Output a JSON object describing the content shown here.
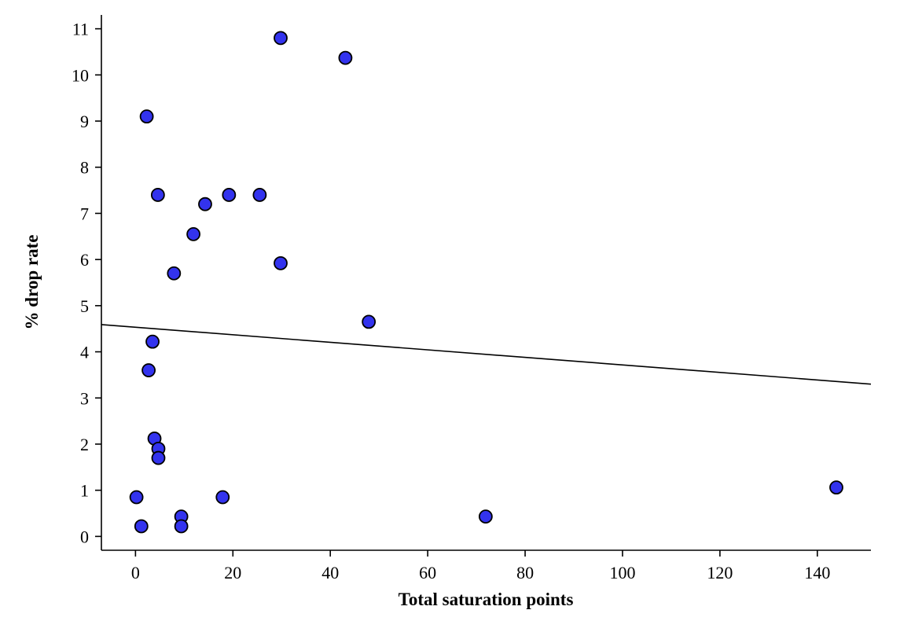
{
  "chart_data": {
    "type": "scatter",
    "title": "",
    "xlabel": "Total saturation points",
    "ylabel": "% drop rate",
    "xlim": [
      -7,
      151
    ],
    "ylim": [
      -0.3,
      11.3
    ],
    "xticks": [
      0,
      20,
      40,
      60,
      80,
      100,
      120,
      140
    ],
    "yticks": [
      0,
      1,
      2,
      3,
      4,
      5,
      6,
      7,
      8,
      9,
      10,
      11
    ],
    "grid": false,
    "legend": "none",
    "point_color": "#3333ee",
    "point_edge_color": "#000000",
    "points": [
      {
        "x": 0.2,
        "y": 0.85
      },
      {
        "x": 1.2,
        "y": 0.22
      },
      {
        "x": 2.3,
        "y": 9.1
      },
      {
        "x": 2.7,
        "y": 3.6
      },
      {
        "x": 3.5,
        "y": 4.22
      },
      {
        "x": 3.9,
        "y": 2.12
      },
      {
        "x": 4.6,
        "y": 7.4
      },
      {
        "x": 4.7,
        "y": 1.9
      },
      {
        "x": 4.7,
        "y": 1.7
      },
      {
        "x": 7.9,
        "y": 5.7
      },
      {
        "x": 9.4,
        "y": 0.43
      },
      {
        "x": 9.4,
        "y": 0.22
      },
      {
        "x": 11.9,
        "y": 6.55
      },
      {
        "x": 14.3,
        "y": 7.2
      },
      {
        "x": 17.9,
        "y": 0.85
      },
      {
        "x": 19.2,
        "y": 7.4
      },
      {
        "x": 25.5,
        "y": 7.4
      },
      {
        "x": 29.8,
        "y": 10.8
      },
      {
        "x": 29.8,
        "y": 5.92
      },
      {
        "x": 43.1,
        "y": 10.37
      },
      {
        "x": 47.9,
        "y": 4.65
      },
      {
        "x": 71.9,
        "y": 0.43
      },
      {
        "x": 143.9,
        "y": 1.06
      }
    ],
    "trend_line": {
      "x": [
        -7,
        151
      ],
      "y": [
        4.59,
        3.3
      ]
    }
  }
}
